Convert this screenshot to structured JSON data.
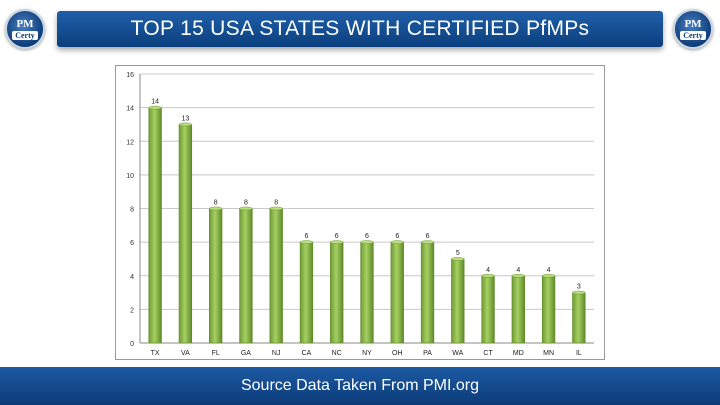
{
  "header": {
    "title": "TOP 15 USA STATES WITH CERTIFIED PfMPs",
    "logo_top": "PM",
    "logo_bottom": "Certy"
  },
  "footer": {
    "text": "Source Data Taken From PMI.org"
  },
  "colors": {
    "title_bar": "#0f4a8f",
    "bar_fill": "#8fbf4f",
    "bar_dark": "#5f8a2a",
    "grid": "#c8c8c8"
  },
  "chart_data": {
    "type": "bar",
    "categories": [
      "TX",
      "VA",
      "FL",
      "GA",
      "NJ",
      "CA",
      "NC",
      "NY",
      "OH",
      "PA",
      "WA",
      "CT",
      "MD",
      "MN",
      "IL"
    ],
    "values": [
      14,
      13,
      8,
      8,
      8,
      6,
      6,
      6,
      6,
      6,
      5,
      4,
      4,
      4,
      3
    ],
    "ylim": [
      0,
      16
    ],
    "yticks": [
      0,
      2,
      4,
      6,
      8,
      10,
      12,
      14,
      16
    ],
    "grid": true,
    "data_labels": true,
    "legend": "none"
  }
}
